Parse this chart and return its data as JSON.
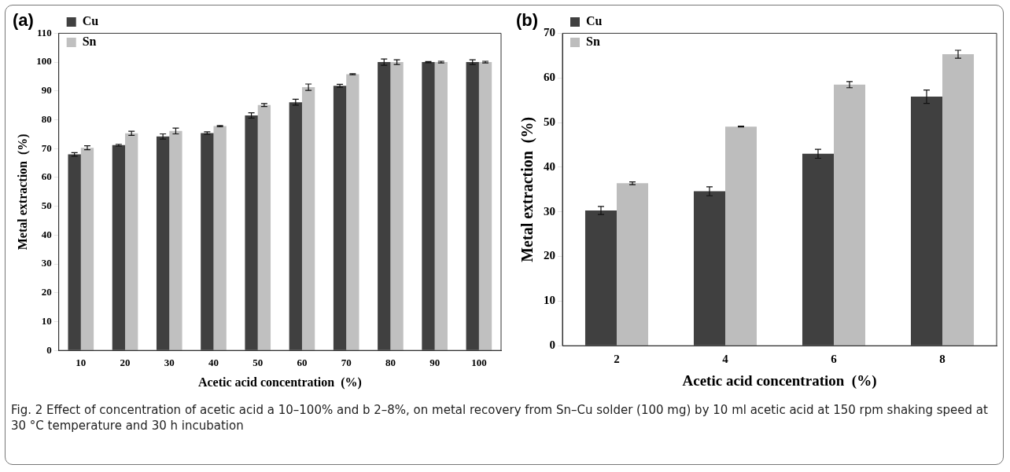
{
  "chart_data": [
    {
      "type": "bar",
      "title": "(a)",
      "xlabel": "Acetic acid concentration  (%)",
      "ylabel": "Metal extraction  (%)",
      "categories": [
        "10",
        "20",
        "30",
        "40",
        "50",
        "60",
        "70",
        "80",
        "90",
        "100"
      ],
      "series": [
        {
          "name": "Cu",
          "color": "#404040",
          "values": [
            68,
            71.2,
            74.2,
            75.4,
            81.5,
            86.1,
            91.8,
            100,
            100,
            100
          ],
          "errors": [
            0.6,
            0.3,
            0.9,
            0.4,
            0.9,
            1.0,
            0.5,
            1.1,
            0.2,
            0.8
          ]
        },
        {
          "name": "Sn",
          "color": "#c0c0c0",
          "values": [
            70.3,
            75.3,
            76.1,
            77.8,
            85.1,
            91.3,
            95.8,
            100,
            100,
            100
          ],
          "errors": [
            0.7,
            0.7,
            1.0,
            0.2,
            0.5,
            1.1,
            0.2,
            0.8,
            0.3,
            0.3
          ]
        }
      ],
      "ylim": [
        0,
        110
      ],
      "yticks": [
        0,
        10,
        20,
        30,
        40,
        50,
        60,
        70,
        80,
        90,
        100,
        110
      ],
      "grid": false,
      "legend": "top left",
      "annotations": [
        "Fig. 2  Effect of concentration of acetic acid a 10–100% and b 2–8%, on metal recovery from Sn–Cu solder (100 mg) by 10 ml acetic acid at 150 rpm shaking speed at 30 °C temperature and 30 h incubation"
      ]
    },
    {
      "type": "bar",
      "title": "(b)",
      "xlabel": "Acetic acid concentration  (%)",
      "ylabel": "Metal extraction  (%)",
      "categories": [
        "2",
        "4",
        "6",
        "8"
      ],
      "series": [
        {
          "name": "Cu",
          "color": "#404040",
          "values": [
            30.3,
            34.6,
            43,
            55.8
          ],
          "errors": [
            0.9,
            1.0,
            1.0,
            1.5
          ]
        },
        {
          "name": "Sn",
          "color": "#bdbdbd",
          "values": [
            36.4,
            49.1,
            58.5,
            65.3
          ],
          "errors": [
            0.3,
            0.1,
            0.7,
            0.9
          ]
        }
      ],
      "ylim": [
        0,
        70
      ],
      "yticks": [
        0,
        10,
        20,
        30,
        40,
        50,
        60,
        70
      ],
      "grid": false,
      "legend": "top left"
    }
  ]
}
